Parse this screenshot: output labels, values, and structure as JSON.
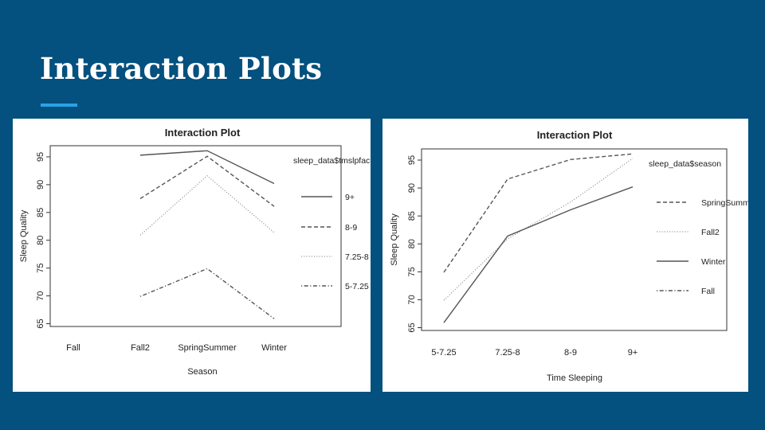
{
  "slide": {
    "title": "Interaction Plots",
    "accent_color": "#2aa3e8",
    "background": "#04507e"
  },
  "chart_data": [
    {
      "type": "line",
      "title": "Interaction Plot",
      "xlabel": "Season",
      "ylabel": "Sleep Quality",
      "categories": [
        "Fall",
        "Fall2",
        "SpringSummer",
        "Winter"
      ],
      "ylim": [
        64.5,
        97
      ],
      "yticks": [
        65,
        70,
        75,
        80,
        85,
        90,
        95
      ],
      "legend_title": "sleep_data$tmslpfac",
      "legend_position": "right",
      "series": [
        {
          "name": "9+",
          "style": "solid",
          "values": [
            null,
            95.3,
            96.1,
            90.2
          ]
        },
        {
          "name": "8-9",
          "style": "dashed",
          "values": [
            null,
            87.5,
            95.1,
            86.1
          ]
        },
        {
          "name": "7.25-8",
          "style": "dotted",
          "values": [
            null,
            80.9,
            91.6,
            81.4
          ]
        },
        {
          "name": "5-7.25",
          "style": "dotdash",
          "values": [
            null,
            69.9,
            74.9,
            65.9
          ]
        }
      ]
    },
    {
      "type": "line",
      "title": "Interaction Plot",
      "xlabel": "Time Sleeping",
      "ylabel": "Sleep Quality",
      "categories": [
        "5-7.25",
        "7.25-8",
        "8-9",
        "9+"
      ],
      "ylim": [
        64.5,
        97
      ],
      "yticks": [
        65,
        70,
        75,
        80,
        85,
        90,
        95
      ],
      "legend_title": "sleep_data$season",
      "legend_position": "right",
      "series": [
        {
          "name": "SpringSummer",
          "style": "dashed",
          "values": [
            74.9,
            91.6,
            95.1,
            96.1
          ]
        },
        {
          "name": "Fall2",
          "style": "dotted",
          "values": [
            69.9,
            80.9,
            87.5,
            95.3
          ]
        },
        {
          "name": "Winter",
          "style": "solid",
          "values": [
            65.9,
            81.4,
            86.1,
            90.2
          ]
        },
        {
          "name": "Fall",
          "style": "dotdash",
          "values": [
            null,
            null,
            null,
            null
          ]
        }
      ]
    }
  ]
}
